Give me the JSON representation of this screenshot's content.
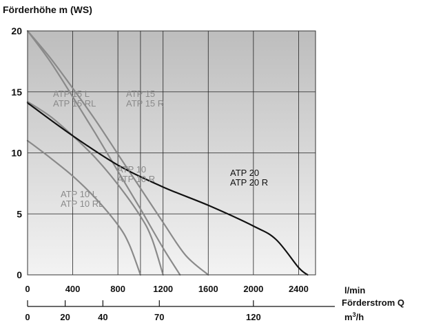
{
  "chart_data": {
    "type": "line",
    "ylabel": "Förderhöhe m (WS)",
    "ylim": [
      0,
      20
    ],
    "yticks": [
      0,
      5,
      10,
      15,
      20
    ],
    "xlim": [
      0,
      2550
    ],
    "x_unit_top": "l/min",
    "x_axis_label": "Förderstrom Q",
    "x_unit_bottom_base": "m",
    "x_unit_bottom_sup": "3",
    "x_unit_bottom_tail": "/h",
    "xticks_lmin": [
      "0",
      "400",
      "800",
      "1200",
      "1600",
      "2000",
      "2400"
    ],
    "xticks_m3h": [
      {
        "label": "0",
        "lmin": 0
      },
      {
        "label": "20",
        "lmin": 333
      },
      {
        "label": "40",
        "lmin": 667
      },
      {
        "label": "70",
        "lmin": 1167
      },
      {
        "label": "120",
        "lmin": 2000
      }
    ],
    "vertical_grid_lmin": [
      400,
      800,
      1000,
      1200,
      1600,
      2000,
      2400
    ],
    "grid": true,
    "series": [
      {
        "name_lines": [
          "ATP 10 L",
          "ATP 10 RL"
        ],
        "color": "#8a8a8a",
        "points": [
          [
            0,
            11
          ],
          [
            200,
            9.6
          ],
          [
            400,
            8.1
          ],
          [
            600,
            6.3
          ],
          [
            800,
            4.1
          ],
          [
            900,
            2.5
          ],
          [
            1000,
            0
          ]
        ]
      },
      {
        "name_lines": [
          "ATP 10",
          "ATP 10 R"
        ],
        "color": "#8a8a8a",
        "points": [
          [
            0,
            14.2
          ],
          [
            200,
            13
          ],
          [
            400,
            11.4
          ],
          [
            600,
            9.6
          ],
          [
            800,
            7.4
          ],
          [
            1000,
            4.8
          ],
          [
            1100,
            3.0
          ],
          [
            1200,
            0
          ]
        ]
      },
      {
        "name_lines": [
          "ATP 15 L",
          "ATP 15 RL"
        ],
        "color": "#8a8a8a",
        "points": [
          [
            0,
            20
          ],
          [
            200,
            17.5
          ],
          [
            400,
            14.6
          ],
          [
            600,
            11.6
          ],
          [
            800,
            8.5
          ],
          [
            1000,
            5.4
          ],
          [
            1200,
            2.2
          ],
          [
            1350,
            0
          ]
        ]
      },
      {
        "name_lines": [
          "ATP 15",
          "ATP 15 R"
        ],
        "color": "#8a8a8a",
        "points": [
          [
            0,
            20
          ],
          [
            200,
            17.8
          ],
          [
            400,
            15.3
          ],
          [
            600,
            12.7
          ],
          [
            800,
            9.9
          ],
          [
            1000,
            7.1
          ],
          [
            1200,
            4.3
          ],
          [
            1400,
            1.6
          ],
          [
            1600,
            0
          ]
        ]
      },
      {
        "name_lines": [
          "ATP 20",
          "ATP 20 R"
        ],
        "color": "#111111",
        "points": [
          [
            0,
            14.1
          ],
          [
            400,
            11.4
          ],
          [
            800,
            9.0
          ],
          [
            1200,
            7.2
          ],
          [
            1600,
            5.7
          ],
          [
            2000,
            4.0
          ],
          [
            2200,
            2.9
          ],
          [
            2400,
            0.6
          ],
          [
            2480,
            0
          ]
        ]
      }
    ]
  }
}
